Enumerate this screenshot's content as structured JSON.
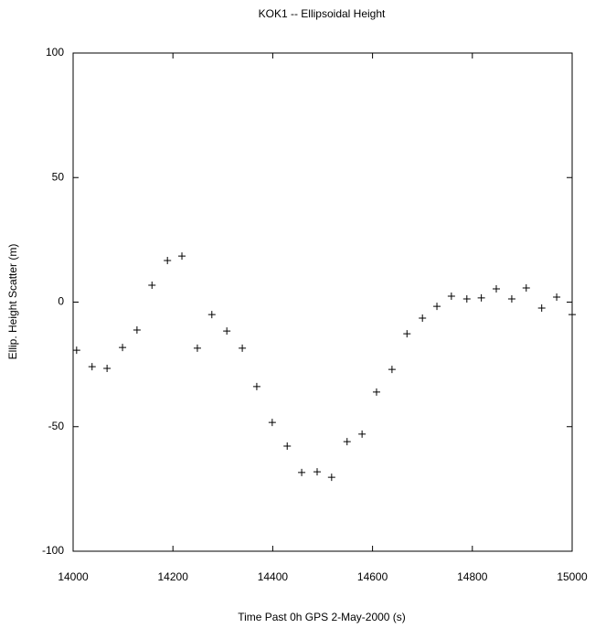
{
  "chart_data": {
    "type": "scatter",
    "title": "KOK1 -- Ellipsoidal Height",
    "x_label": "Time Past 0h GPS 2-May-2000  (s)",
    "y_label": "Ellip. Height Scatter  (m)",
    "color": "#000000",
    "x": [
      14007,
      14038,
      14068,
      14099,
      14128,
      14158,
      14189,
      14218,
      14249,
      14278,
      14308,
      14339,
      14368,
      14399,
      14429,
      14458,
      14489,
      14518,
      14549,
      14579,
      14608,
      14639,
      14669,
      14700,
      14729,
      14758,
      14789,
      14818,
      14848,
      14879,
      14908,
      14939,
      14969,
      15000
    ],
    "values": [
      -19.3,
      -25.9,
      -26.6,
      -18.2,
      -11.2,
      6.8,
      16.7,
      18.5,
      -18.5,
      -5,
      -11.6,
      -18.5,
      -33.9,
      -48.3,
      -57.8,
      -68.4,
      -68.1,
      -70.3,
      -56,
      -53,
      -36.1,
      -27,
      -12.7,
      -6.4,
      -1.7,
      2.4,
      1.3,
      1.7,
      5.3,
      1.3,
      5.7,
      -2.4,
      2,
      -5
    ],
    "xlim": [
      14000,
      15000
    ],
    "xticks": [
      14000,
      14200,
      14400,
      14600,
      14800,
      15000
    ],
    "ylim": [
      -100,
      100
    ],
    "yticks": [
      -100,
      -50,
      0,
      50,
      100
    ]
  }
}
